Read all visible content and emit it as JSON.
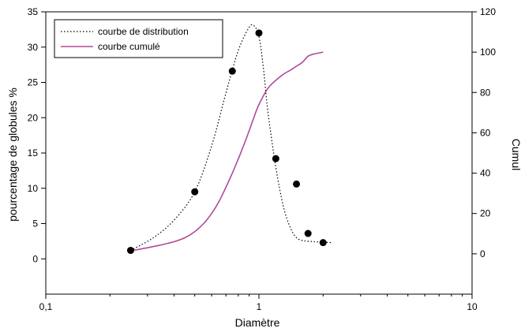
{
  "chart_data": {
    "type": "line",
    "xlabel": "Diamètre",
    "ylabel": "pourcentage de globules %",
    "y2label": "Cumul",
    "xscale": "log",
    "xlim": [
      0.1,
      10
    ],
    "xticks": [
      {
        "value": 0.1,
        "label": "0,1"
      },
      {
        "value": 1,
        "label": "1"
      },
      {
        "value": 10,
        "label": "10"
      }
    ],
    "ylim": [
      -5,
      35
    ],
    "yticks": [
      0,
      5,
      10,
      15,
      20,
      25,
      30,
      35
    ],
    "y2lim": [
      -20,
      120
    ],
    "y2ticks": [
      0,
      20,
      40,
      60,
      80,
      100,
      120
    ],
    "grid": false,
    "legend_position": "top-left",
    "series": [
      {
        "name": "courbe de distribution",
        "axis": "left",
        "style": "dotted",
        "color": "#000000",
        "x": [
          0.25,
          0.32,
          0.4,
          0.5,
          0.6,
          0.7,
          0.8,
          0.9,
          0.95,
          1.0,
          1.05,
          1.1,
          1.2,
          1.3,
          1.4,
          1.5,
          1.6,
          1.7,
          1.9,
          2.2
        ],
        "values": [
          1.2,
          3.0,
          5.5,
          9.5,
          16.0,
          23.5,
          29.5,
          32.8,
          33.0,
          31.5,
          27.0,
          21.0,
          13.0,
          7.5,
          4.5,
          3.0,
          2.6,
          2.5,
          2.4,
          2.3
        ]
      },
      {
        "name": "courbe cumulé",
        "axis": "right",
        "style": "solid",
        "color": "#b04a9a",
        "x": [
          0.25,
          0.3,
          0.35,
          0.4,
          0.45,
          0.5,
          0.55,
          0.6,
          0.65,
          0.7,
          0.75,
          0.8,
          0.85,
          0.9,
          0.95,
          1.0,
          1.1,
          1.2,
          1.3,
          1.4,
          1.5,
          1.6,
          1.7,
          1.8,
          2.0
        ],
        "values": [
          1.5,
          3,
          4.5,
          6,
          8,
          11,
          15,
          20,
          26,
          33,
          40,
          47,
          54,
          61,
          68,
          74,
          82,
          86,
          89,
          91,
          93,
          95,
          98,
          99,
          100
        ]
      },
      {
        "name": "",
        "axis": "left",
        "style": "markers",
        "color": "#000000",
        "x": [
          0.25,
          0.5,
          0.75,
          1.0,
          1.2,
          1.5,
          1.7,
          2.0
        ],
        "values": [
          1.2,
          9.5,
          26.6,
          32.0,
          14.2,
          10.6,
          3.6,
          2.3
        ]
      }
    ]
  }
}
